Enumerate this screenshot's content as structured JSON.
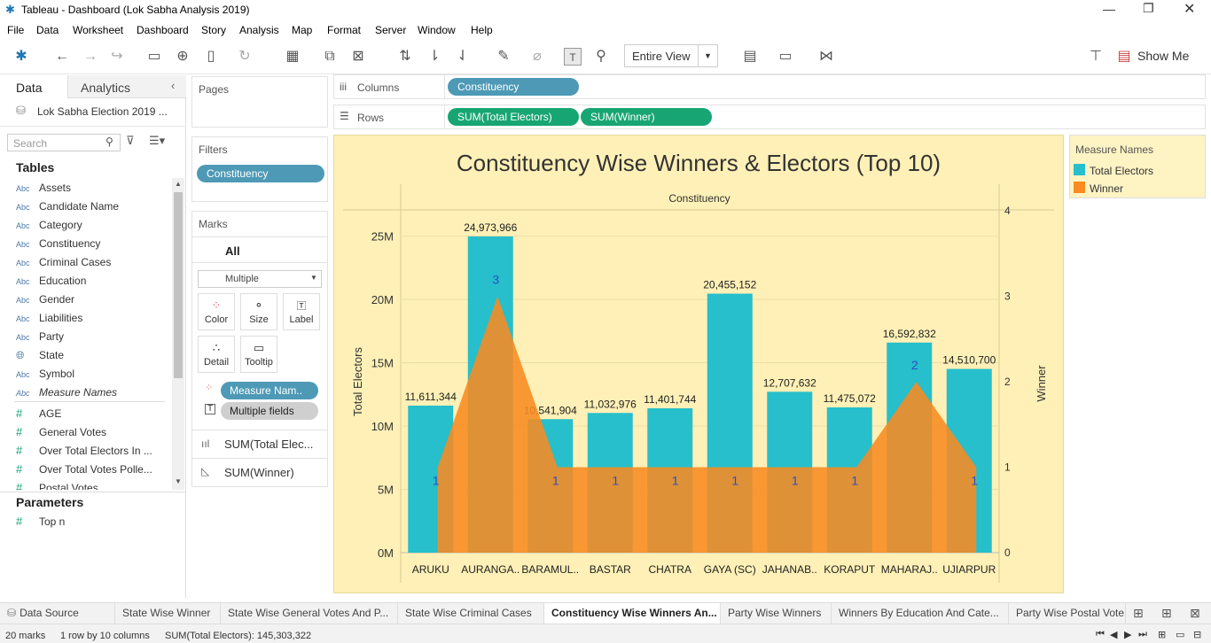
{
  "window": {
    "title": "Tableau - Dashboard (Lok Sabha Analysis 2019)"
  },
  "menu": [
    "File",
    "Data",
    "Worksheet",
    "Dashboard",
    "Story",
    "Analysis",
    "Map",
    "Format",
    "Server",
    "Window",
    "Help"
  ],
  "toolbar": {
    "view_select": "Entire View",
    "show_me": "Show Me"
  },
  "left": {
    "tab_data": "Data",
    "tab_analytics": "Analytics",
    "datasource": "Lok Sabha Election 2019 ...",
    "search_placeholder": "Search",
    "tables_heading": "Tables",
    "dimensions": [
      "Assets",
      "Candidate Name",
      "Category",
      "Constituency",
      "Criminal Cases",
      "Education",
      "Gender",
      "Liabilities",
      "Party",
      "State",
      "Symbol",
      "Measure Names"
    ],
    "measures": [
      "AGE",
      "General Votes",
      "Over Total Electors  In ...",
      "Over Total Votes Polle...",
      "Postal Votes"
    ],
    "parameters_heading": "Parameters",
    "parameters": [
      "Top n"
    ]
  },
  "shelves": {
    "pages_label": "Pages",
    "filters_label": "Filters",
    "filter_pill": "Constituency",
    "marks_label": "Marks",
    "marks_all": "All",
    "marks_type": "Multiple",
    "mark_buttons": [
      "Color",
      "Size",
      "Label",
      "Detail",
      "Tooltip"
    ],
    "marks_pills": [
      "Measure Nam..",
      "Multiple fields"
    ],
    "marks_sections": [
      "SUM(Total Elec...",
      "SUM(Winner)"
    ],
    "columns_label": "Columns",
    "columns_pill": "Constituency",
    "rows_label": "Rows",
    "rows_pills": [
      "SUM(Total Electors)",
      "SUM(Winner)"
    ]
  },
  "legend": {
    "title": "Measure Names",
    "items": [
      {
        "label": "Total Electors",
        "color": "#26bfcb"
      },
      {
        "label": "Winner",
        "color": "#f88b21"
      }
    ]
  },
  "chart_data": {
    "type": "bar",
    "title": "Constituency Wise Winners & Electors (Top 10)",
    "header": "Constituency",
    "categories": [
      "ARUKU",
      "AURANGA..",
      "BARAMUL..",
      "BASTAR",
      "CHATRA",
      "GAYA (SC)",
      "JAHANAB..",
      "KORAPUT",
      "MAHARAJ..",
      "UJIARPUR"
    ],
    "series": [
      {
        "name": "Total Electors",
        "type": "bar",
        "axis": "left",
        "color": "#26bfcb",
        "values": [
          11611344,
          24973966,
          10541904,
          11032976,
          11401744,
          20455152,
          12707632,
          11475072,
          16592832,
          14510700
        ],
        "labels": [
          "11,611,344",
          "24,973,966",
          "10,541,904",
          "11,032,976",
          "11,401,744",
          "20,455,152",
          "12,707,632",
          "11,475,072",
          "16,592,832",
          "14,510,700"
        ]
      },
      {
        "name": "Winner",
        "type": "area",
        "axis": "right",
        "color": "#f88b21",
        "values": [
          1,
          3,
          1,
          1,
          1,
          1,
          1,
          1,
          2,
          1
        ]
      }
    ],
    "ylabel": "Total Electors",
    "y2label": "Winner",
    "ylim": [
      0,
      27000000
    ],
    "y2lim": [
      0,
      4
    ],
    "yticks": [
      "0M",
      "5M",
      "10M",
      "15M",
      "20M",
      "25M"
    ],
    "y2ticks": [
      "0",
      "1",
      "2",
      "3",
      "4"
    ],
    "grid": true
  },
  "sheet_tabs": [
    "Data Source",
    "State Wise Winner",
    "State Wise General Votes And P...",
    "State Wise Criminal Cases",
    "Constituency Wise Winners An...",
    "Party Wise Winners",
    "Winners By Education And Cate...",
    "Party Wise Postal Vote"
  ],
  "status": {
    "marks": "20 marks",
    "rows_cols": "1 row by 10 columns",
    "sum": "SUM(Total Electors): 145,303,322"
  }
}
